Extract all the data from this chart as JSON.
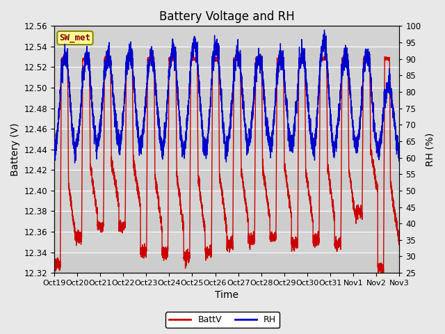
{
  "title": "Battery Voltage and RH",
  "xlabel": "Time",
  "ylabel_left": "Battery (V)",
  "ylabel_right": "RH (%)",
  "station_label": "SW_met",
  "ylim_left": [
    12.32,
    12.56
  ],
  "ylim_right": [
    25,
    100
  ],
  "yticks_left": [
    12.32,
    12.34,
    12.36,
    12.38,
    12.4,
    12.42,
    12.44,
    12.46,
    12.48,
    12.5,
    12.52,
    12.54,
    12.56
  ],
  "yticks_right": [
    25,
    30,
    35,
    40,
    45,
    50,
    55,
    60,
    65,
    70,
    75,
    80,
    85,
    90,
    95,
    100
  ],
  "xtick_labels": [
    "Oct 19",
    "Oct 20",
    "Oct 21",
    "Oct 22",
    "Oct 23",
    "Oct 24",
    "Oct 25",
    "Oct 26",
    "Oct 27",
    "Oct 28",
    "Oct 29",
    "Oct 30",
    "Oct 31",
    "Nov 1",
    "Nov 2",
    "Nov 3"
  ],
  "batt_color": "#cc0000",
  "rh_color": "#0000cc",
  "legend_batt": "BattV",
  "legend_rh": "RH",
  "fig_facecolor": "#e8e8e8",
  "plot_bg_color": "#d3d3d3",
  "band_color": "#c0c0c0",
  "title_fontsize": 12,
  "axis_label_fontsize": 10,
  "tick_fontsize": 8.5,
  "line_width": 1.0
}
